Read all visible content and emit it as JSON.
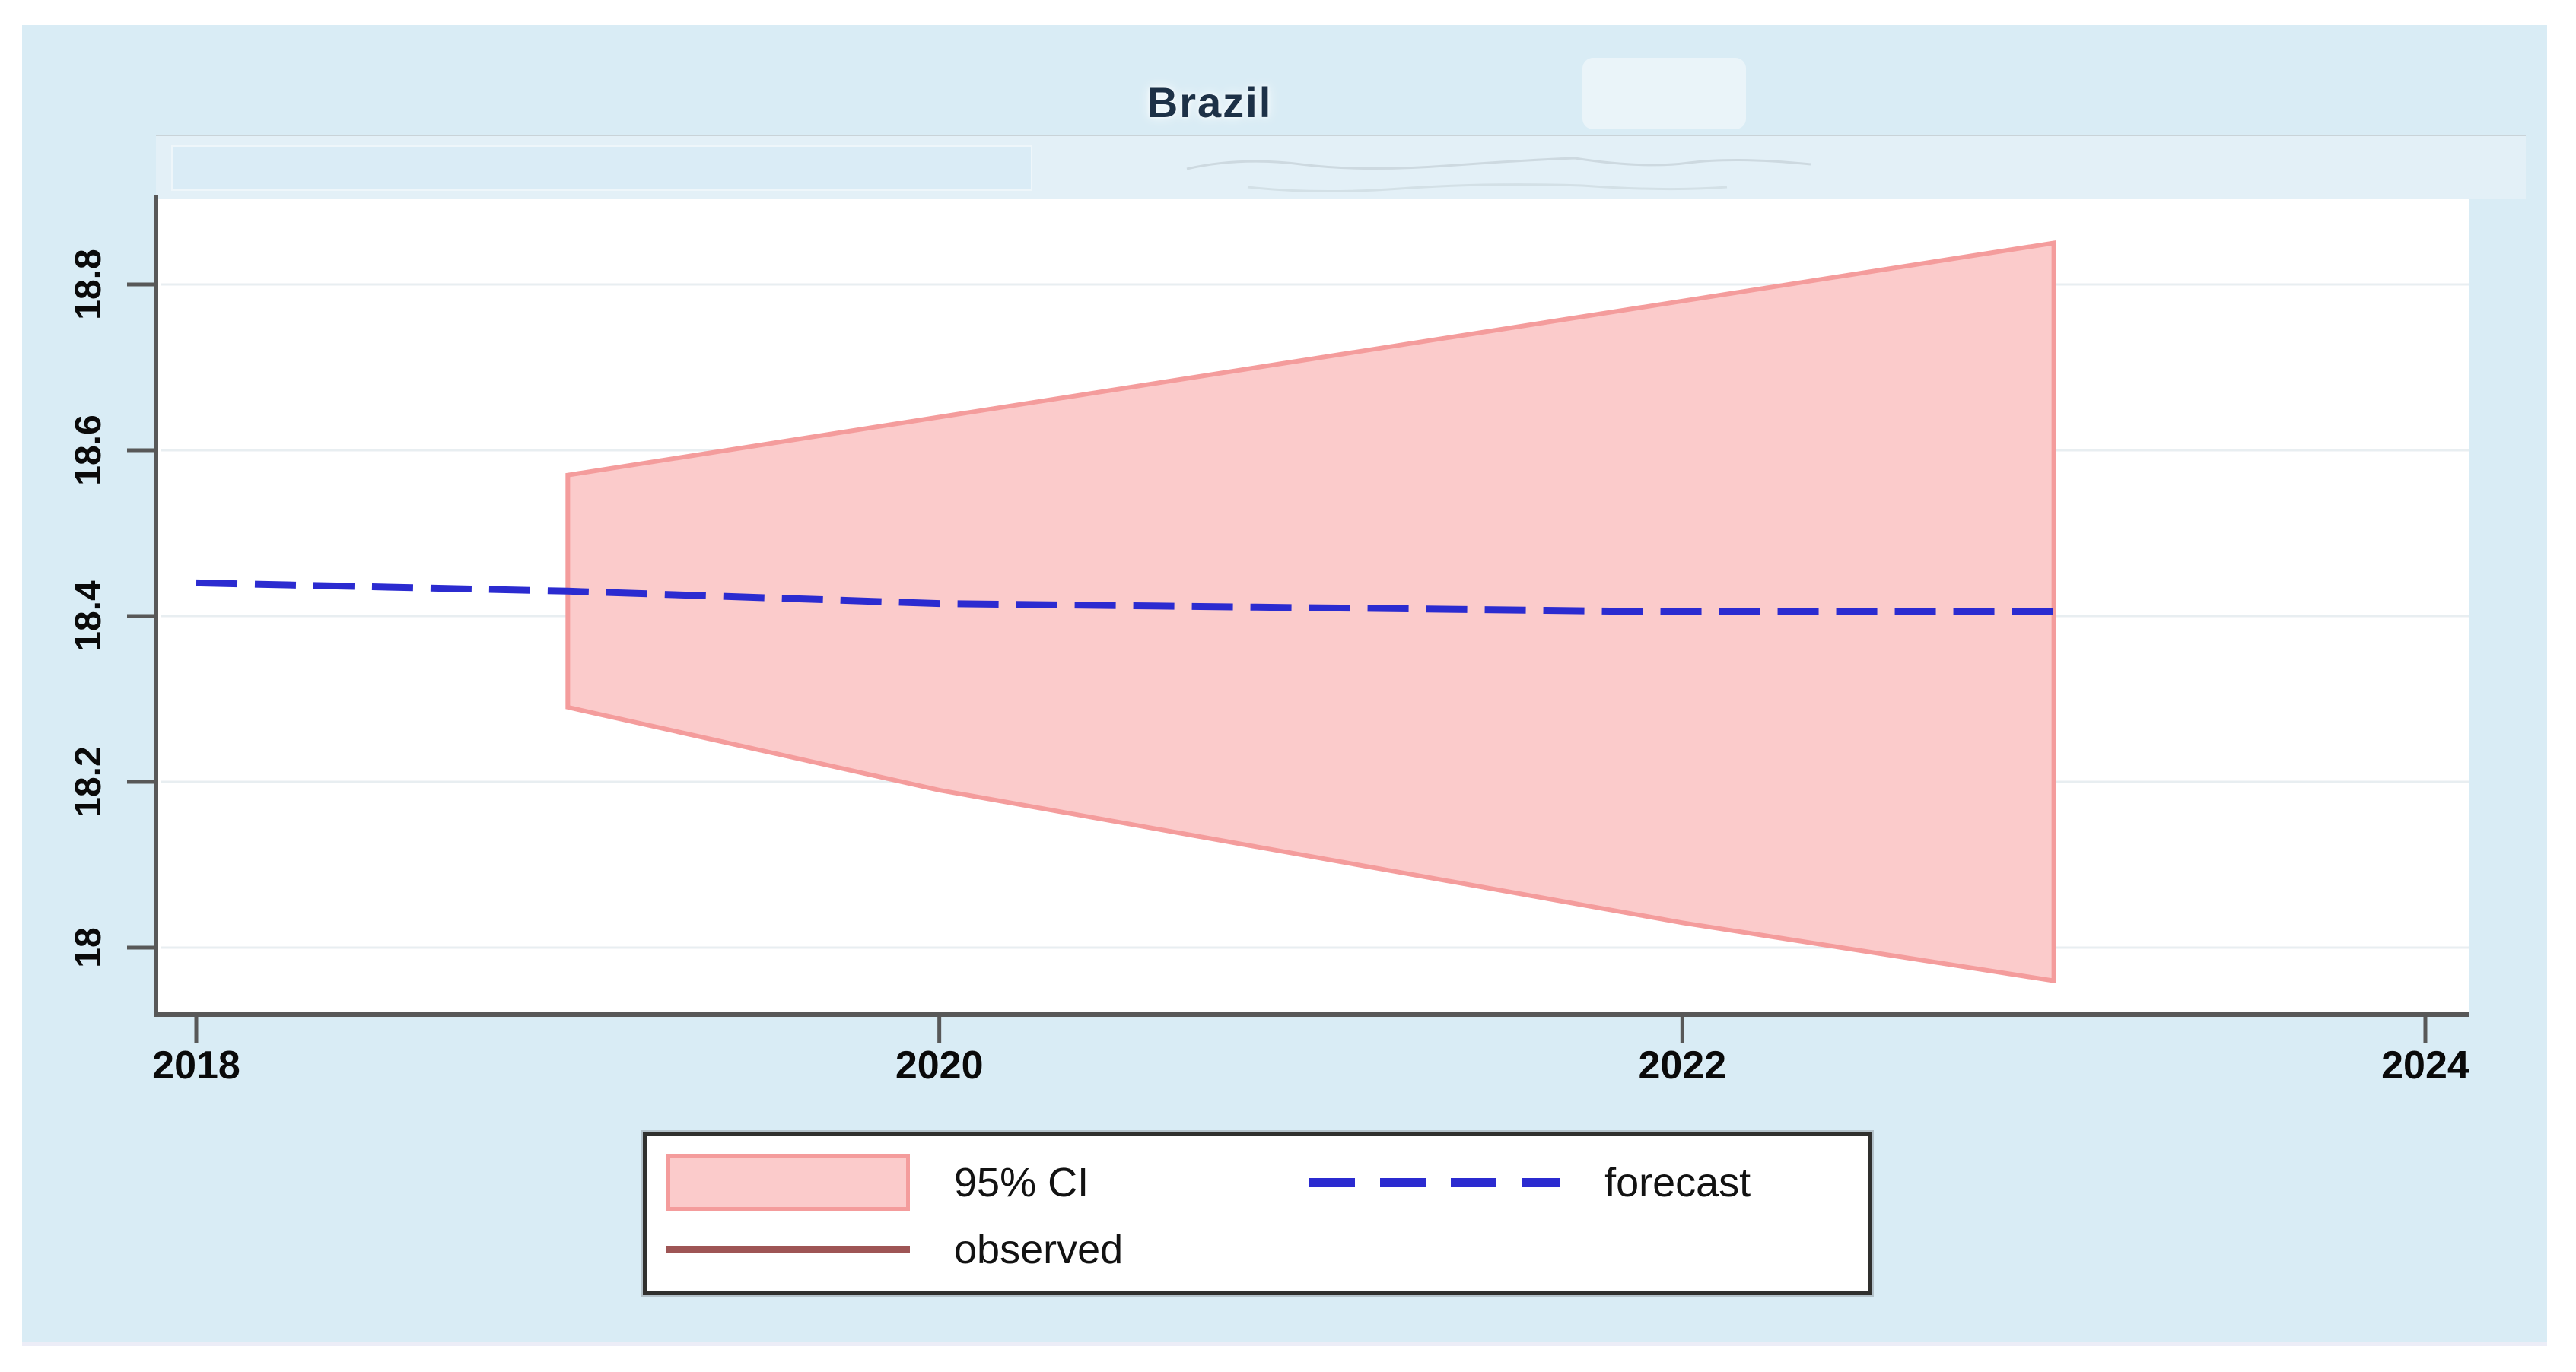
{
  "title": {
    "text": "Brazil"
  },
  "chart_data": {
    "type": "area",
    "title": "Brazil",
    "xlabel": "",
    "ylabel": "",
    "x_ticks": {
      "values": [
        2018,
        2020,
        2022,
        2024
      ],
      "labels": [
        "2018",
        "2020",
        "2022",
        "2024"
      ]
    },
    "y_ticks": {
      "values": [
        18,
        18.2,
        18.4,
        18.6,
        18.8
      ],
      "labels": [
        "18",
        "18.2",
        "18.4",
        "18.6",
        "18.8"
      ]
    },
    "xlim": [
      2017.9,
      2024.12
    ],
    "ylim": [
      17.92,
      18.92
    ],
    "grid": true,
    "legend_position": "bottom-center",
    "series": [
      {
        "name": "95% CI",
        "type": "band",
        "x": [
          2019,
          2020,
          2021,
          2022,
          2023
        ],
        "upper": [
          18.57,
          18.64,
          18.71,
          18.78,
          18.85
        ],
        "lower": [
          18.29,
          18.19,
          18.11,
          18.03,
          17.96
        ],
        "fill": "#fbcbcb",
        "stroke": "#f49c9c"
      },
      {
        "name": "forecast",
        "type": "line",
        "dashed": true,
        "x": [
          2018,
          2019,
          2020,
          2021,
          2022,
          2023
        ],
        "y": [
          18.44,
          18.43,
          18.415,
          18.41,
          18.405,
          18.405
        ],
        "color": "#2b2bd0"
      },
      {
        "name": "observed",
        "type": "line",
        "dashed": false,
        "x": [],
        "y": [],
        "color": "#9e5555"
      }
    ]
  },
  "colors": {
    "page_background": "#ffffff",
    "panel_background": "#d9ecf5",
    "plot_background": "#ffffff",
    "axis": "#585858",
    "grid": "#e8eef1",
    "tick_label": "#0a0a0a",
    "title_text": "#1d3147",
    "legend_border": "#30302e",
    "legend_background": "#ffffff",
    "legend_text": "#121212"
  }
}
